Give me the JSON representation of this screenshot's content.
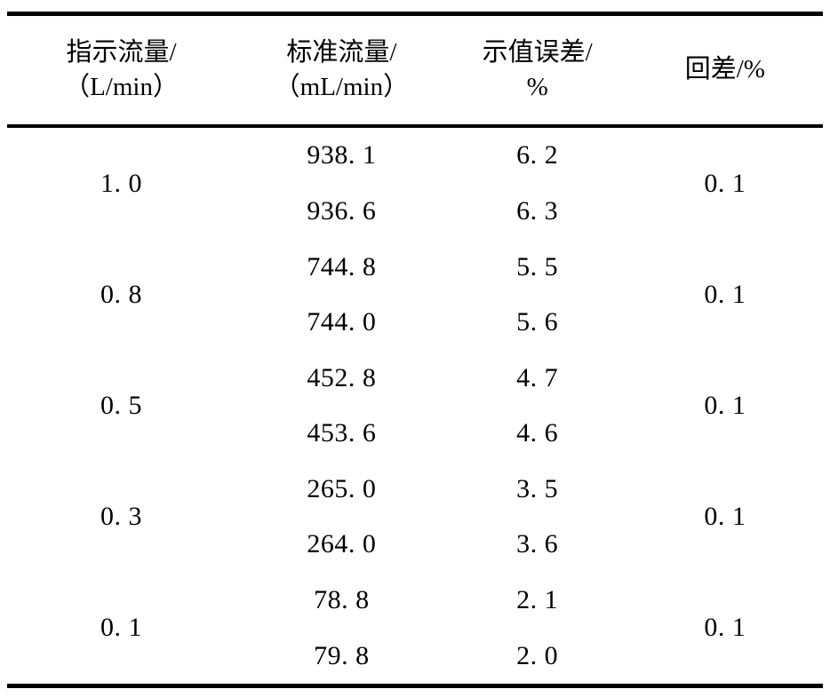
{
  "table": {
    "header": {
      "columns": [
        {
          "line1": "指示流量/",
          "line2": "（L/min）"
        },
        {
          "line1": "标准流量/",
          "line2": "（mL/min）"
        },
        {
          "line1": "示值误差/",
          "line2": "%"
        },
        {
          "line1": "回差/%",
          "line2": ""
        }
      ]
    },
    "groups": [
      {
        "indicated_flow": "1. 0",
        "hysteresis": "0. 1",
        "rows": [
          {
            "standard_flow": "938. 1",
            "error": "6. 2"
          },
          {
            "standard_flow": "936. 6",
            "error": "6. 3"
          }
        ]
      },
      {
        "indicated_flow": "0. 8",
        "hysteresis": "0. 1",
        "rows": [
          {
            "standard_flow": "744. 8",
            "error": "5. 5"
          },
          {
            "standard_flow": "744. 0",
            "error": "5. 6"
          }
        ]
      },
      {
        "indicated_flow": "0. 5",
        "hysteresis": "0. 1",
        "rows": [
          {
            "standard_flow": "452. 8",
            "error": "4. 7"
          },
          {
            "standard_flow": "453. 6",
            "error": "4. 6"
          }
        ]
      },
      {
        "indicated_flow": "0. 3",
        "hysteresis": "0. 1",
        "rows": [
          {
            "standard_flow": "265. 0",
            "error": "3. 5"
          },
          {
            "standard_flow": "264. 0",
            "error": "3. 6"
          }
        ]
      },
      {
        "indicated_flow": "0. 1",
        "hysteresis": "0. 1",
        "rows": [
          {
            "standard_flow": "78. 8",
            "error": "2. 1"
          },
          {
            "standard_flow": "79. 8",
            "error": "2. 0"
          }
        ]
      }
    ],
    "colors": {
      "text": "#000000",
      "background": "#ffffff",
      "rule": "#000000"
    }
  }
}
